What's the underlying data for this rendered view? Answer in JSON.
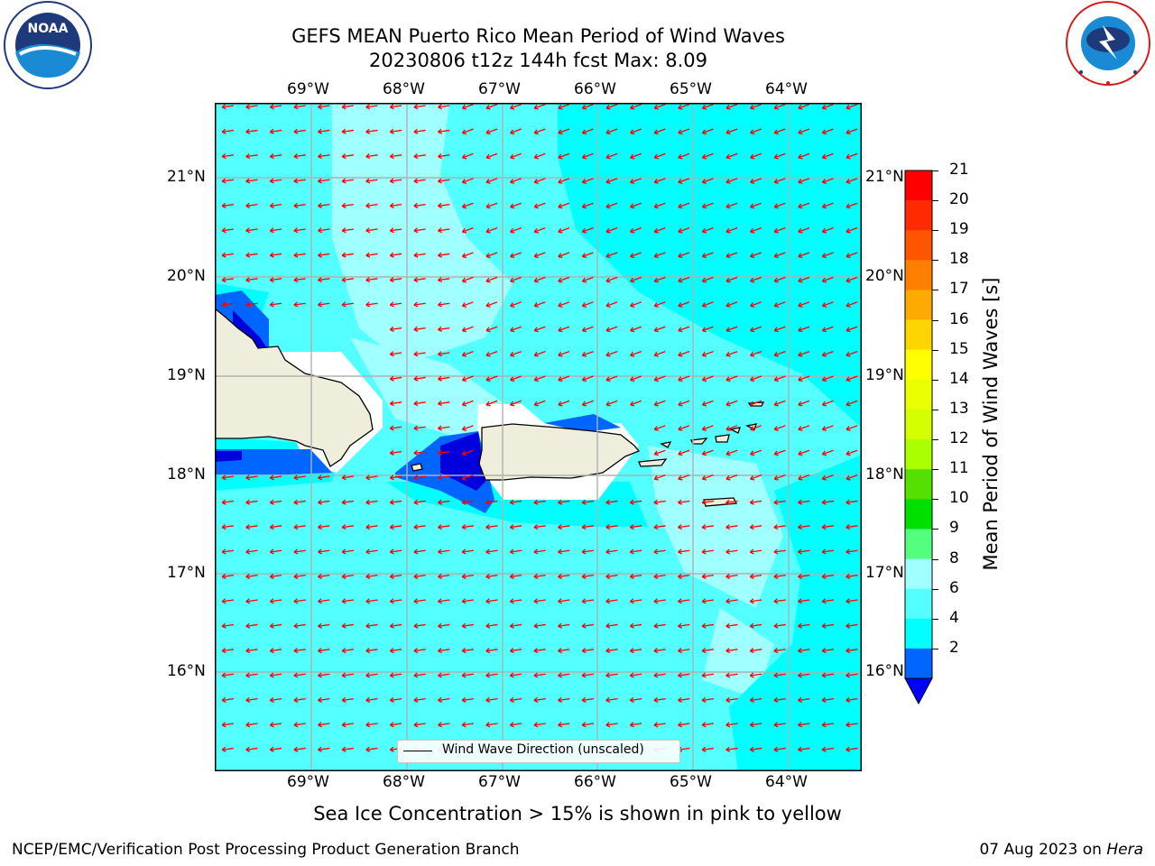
{
  "header": {
    "title_line1": "GEFS MEAN Puerto Rico Mean Period of Wind Waves",
    "title_line2": "20230806 t12z 144h fcst   Max: 8.09",
    "left_logo_text": "NOAA",
    "left_logo_ring_text": "NATIONAL OCEANIC AND ATMOSPHERIC ADMINISTRATION · U.S. DEPARTMENT OF COMMERCE",
    "right_logo_ring_text": "NATIONAL WEATHER SERVICE"
  },
  "map": {
    "lon_labels": [
      "69°W",
      "68°W",
      "67°W",
      "66°W",
      "65°W",
      "64°W"
    ],
    "lat_labels": [
      "21°N",
      "20°N",
      "19°N",
      "18°N",
      "17°N",
      "16°N"
    ],
    "colors": {
      "ocean_4_6": "#00ffff",
      "ocean_6_8": "#54ffff",
      "ocean_8_9": "#a0ffff",
      "wave_2_4": "#0066ff",
      "wave_lt_2": "#0000dd",
      "land": "#efeedd",
      "arrow": "#ff0000",
      "grid": "#b0b0b0"
    },
    "legend_label": "Wind Wave Direction (unscaled)"
  },
  "colorbar": {
    "label": "Mean Period of Wind Waves [s]",
    "ticks": [
      "21",
      "20",
      "19",
      "18",
      "17",
      "16",
      "15",
      "14",
      "13",
      "12",
      "11",
      "10",
      "9",
      "8",
      "6",
      "4",
      "2"
    ],
    "colors": [
      "#ff0000",
      "#ff2a00",
      "#ff5500",
      "#ff8000",
      "#ffaa00",
      "#ffd500",
      "#ffff00",
      "#eaff00",
      "#d4ff00",
      "#aaff00",
      "#55e000",
      "#00e000",
      "#54ff7f",
      "#a0ffff",
      "#54ffff",
      "#00ffff",
      "#0066ff"
    ],
    "underflow_color": "#0000ff"
  },
  "notes": {
    "sea_ice": "Sea Ice Concentration > 15% is shown in pink to yellow"
  },
  "footer": {
    "left": "NCEP/EMC/Verification Post Processing Product Generation Branch",
    "right_prefix": "07 Aug 2023 on ",
    "right_host": "Hera"
  }
}
